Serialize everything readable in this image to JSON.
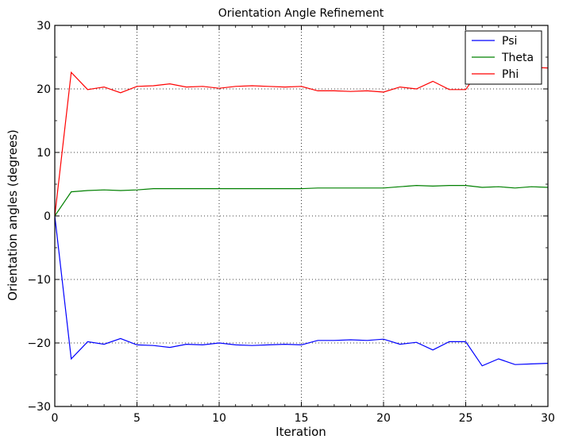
{
  "chart_data": {
    "type": "line",
    "title": "Orientation Angle Refinement",
    "xlabel": "Iteration",
    "ylabel": "Orientation angles (degrees)",
    "xlim": [
      0,
      30
    ],
    "ylim": [
      -30,
      30
    ],
    "xticks": [
      0,
      5,
      10,
      15,
      20,
      25,
      30
    ],
    "yticks": [
      -30,
      -20,
      -10,
      0,
      10,
      20,
      30
    ],
    "ytick_labels": [
      "−30",
      "−20",
      "−10",
      "0",
      "10",
      "20",
      "30"
    ],
    "grid": true,
    "legend": "top-right",
    "x": [
      0,
      1,
      2,
      3,
      4,
      5,
      6,
      7,
      8,
      9,
      10,
      11,
      12,
      13,
      14,
      15,
      16,
      17,
      18,
      19,
      20,
      21,
      22,
      23,
      24,
      25,
      26,
      27,
      28,
      29,
      30
    ],
    "series": [
      {
        "name": "Psi",
        "color": "#0000ff",
        "values": [
          0,
          -22.5,
          -19.8,
          -20.2,
          -19.3,
          -20.3,
          -20.4,
          -20.7,
          -20.2,
          -20.3,
          -20.0,
          -20.3,
          -20.4,
          -20.3,
          -20.2,
          -20.3,
          -19.6,
          -19.6,
          -19.5,
          -19.6,
          -19.4,
          -20.2,
          -19.9,
          -21.1,
          -19.8,
          -19.8,
          -23.6,
          -22.5,
          -23.4,
          -23.3,
          -23.2
        ]
      },
      {
        "name": "Theta",
        "color": "#008000",
        "values": [
          0,
          3.8,
          4.0,
          4.1,
          4.0,
          4.1,
          4.3,
          4.3,
          4.3,
          4.3,
          4.3,
          4.3,
          4.3,
          4.3,
          4.3,
          4.3,
          4.4,
          4.4,
          4.4,
          4.4,
          4.4,
          4.6,
          4.8,
          4.7,
          4.8,
          4.8,
          4.5,
          4.6,
          4.4,
          4.6,
          4.5
        ]
      },
      {
        "name": "Phi",
        "color": "#ff0000",
        "values": [
          0,
          22.6,
          19.9,
          20.3,
          19.4,
          20.4,
          20.5,
          20.8,
          20.3,
          20.4,
          20.1,
          20.4,
          20.5,
          20.4,
          20.3,
          20.4,
          19.7,
          19.7,
          19.6,
          19.7,
          19.5,
          20.3,
          20.0,
          21.2,
          19.9,
          19.9,
          23.6,
          22.6,
          23.5,
          23.4,
          23.3
        ]
      }
    ]
  }
}
